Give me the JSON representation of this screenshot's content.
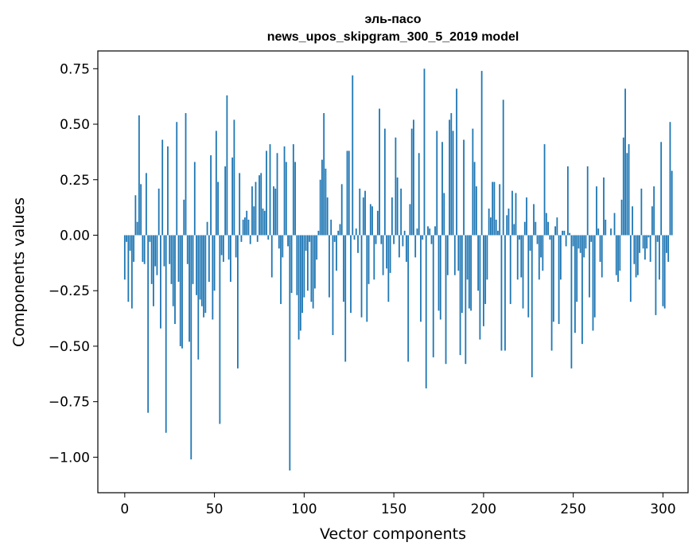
{
  "chart_data": {
    "type": "bar",
    "title_line1": "эль-пасо",
    "title_line2": "news_upos_skipgram_300_5_2019 model",
    "xlabel": "Vector components",
    "ylabel": "Components values",
    "xlim": [
      -15,
      314
    ],
    "ylim": [
      -1.16,
      0.83
    ],
    "x_ticks": [
      0,
      50,
      100,
      150,
      200,
      250,
      300
    ],
    "x_tick_labels": [
      "0",
      "50",
      "100",
      "150",
      "200",
      "250",
      "300"
    ],
    "y_ticks": [
      0.75,
      0.5,
      0.25,
      0.0,
      -0.25,
      -0.5,
      -0.75,
      -1.0
    ],
    "y_tick_labels": [
      "0.75",
      "0.50",
      "0.25",
      "0.00",
      "−0.25",
      "−0.50",
      "−0.75",
      "−1.00"
    ],
    "bar_color": "#1f77b4",
    "values": [
      -0.2,
      -0.03,
      -0.3,
      -0.07,
      -0.33,
      -0.12,
      0.18,
      0.06,
      0.54,
      0.23,
      -0.12,
      -0.13,
      0.28,
      -0.8,
      -0.03,
      -0.22,
      -0.32,
      -0.14,
      -0.18,
      0.21,
      -0.42,
      0.43,
      -0.14,
      -0.89,
      0.4,
      -0.13,
      -0.22,
      -0.32,
      -0.4,
      0.51,
      -0.21,
      -0.5,
      -0.51,
      0.16,
      0.55,
      -0.13,
      -0.48,
      -1.01,
      -0.22,
      0.33,
      -0.27,
      -0.56,
      -0.29,
      -0.32,
      -0.37,
      -0.35,
      0.06,
      -0.21,
      0.36,
      -0.38,
      -0.25,
      0.47,
      0.24,
      -0.85,
      -0.09,
      -0.12,
      0.31,
      0.63,
      -0.11,
      -0.21,
      0.35,
      0.52,
      -0.1,
      -0.6,
      0.28,
      -0.03,
      0.07,
      0.08,
      0.11,
      0.07,
      -0.04,
      0.22,
      0.13,
      0.24,
      -0.03,
      0.27,
      0.28,
      0.12,
      0.11,
      0.38,
      -0.02,
      0.41,
      -0.19,
      0.22,
      0.21,
      0.37,
      -0.06,
      -0.31,
      -0.1,
      0.4,
      0.33,
      -0.05,
      -1.06,
      -0.26,
      0.41,
      0.33,
      -0.27,
      -0.47,
      -0.43,
      -0.35,
      -0.28,
      -0.07,
      -0.25,
      -0.03,
      -0.3,
      -0.33,
      -0.24,
      -0.11,
      0.02,
      0.25,
      0.34,
      0.55,
      0.3,
      0.17,
      -0.28,
      0.07,
      -0.45,
      -0.03,
      -0.16,
      0.02,
      0.05,
      0.23,
      -0.3,
      -0.57,
      0.38,
      0.38,
      -0.35,
      0.72,
      -0.02,
      0.03,
      -0.08,
      0.21,
      -0.37,
      0.17,
      0.2,
      -0.39,
      -0.22,
      0.14,
      0.13,
      -0.2,
      -0.04,
      0.11,
      0.57,
      -0.04,
      -0.18,
      0.48,
      -0.15,
      -0.3,
      -0.17,
      0.17,
      -0.04,
      0.44,
      0.26,
      -0.1,
      0.21,
      -0.05,
      0.02,
      -0.12,
      -0.57,
      0.14,
      0.48,
      0.52,
      -0.1,
      0.03,
      0.37,
      -0.39,
      -0.02,
      0.75,
      -0.69,
      0.04,
      0.03,
      -0.04,
      -0.55,
      0.04,
      0.47,
      -0.34,
      -0.38,
      0.42,
      0.19,
      -0.58,
      -0.18,
      0.52,
      0.55,
      0.47,
      -0.18,
      0.66,
      -0.16,
      -0.54,
      -0.35,
      0.43,
      -0.58,
      -0.2,
      -0.33,
      -0.34,
      0.48,
      0.33,
      0.22,
      -0.25,
      -0.47,
      0.74,
      -0.41,
      -0.31,
      -0.2,
      0.12,
      0.08,
      0.24,
      0.24,
      0.07,
      0.02,
      0.23,
      -0.52,
      0.61,
      -0.52,
      0.09,
      0.12,
      -0.31,
      0.2,
      0.05,
      0.19,
      -0.2,
      -0.02,
      -0.19,
      -0.33,
      0.06,
      0.17,
      -0.37,
      -0.07,
      -0.64,
      0.14,
      0.06,
      -0.04,
      -0.2,
      -0.1,
      -0.16,
      0.41,
      0.1,
      0.06,
      -0.02,
      -0.52,
      -0.39,
      0.04,
      0.08,
      -0.4,
      -0.2,
      0.02,
      0.02,
      -0.05,
      0.31,
      0.01,
      -0.6,
      -0.05,
      -0.44,
      -0.3,
      -0.06,
      -0.08,
      -0.49,
      -0.1,
      -0.06,
      0.31,
      -0.28,
      -0.03,
      -0.43,
      -0.37,
      0.22,
      0.03,
      -0.12,
      -0.19,
      0.26,
      0.07,
      0.0,
      0.0,
      0.03,
      0.0,
      0.1,
      -0.18,
      -0.21,
      -0.16,
      0.16,
      0.44,
      0.66,
      0.37,
      0.41,
      -0.3,
      0.13,
      -0.13,
      -0.19,
      -0.18,
      -0.08,
      0.21,
      -0.06,
      -0.11,
      -0.06,
      -0.01,
      -0.12,
      0.13,
      0.22,
      -0.36,
      -0.03,
      -0.2,
      0.42,
      -0.32,
      -0.33,
      -0.08,
      -0.12,
      0.51,
      0.29
    ]
  }
}
